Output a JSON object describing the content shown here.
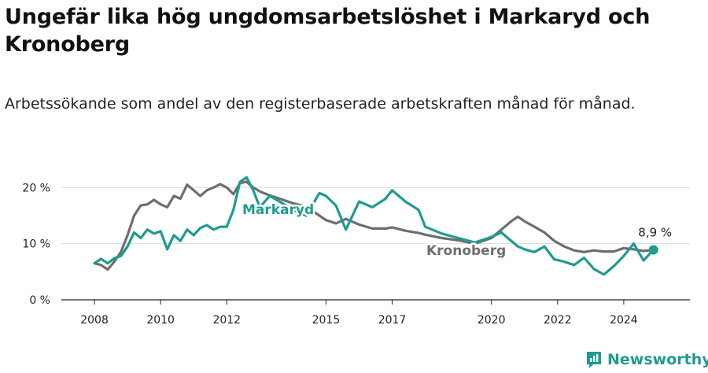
{
  "title": "Ungefär lika hög ungdomsarbetslöshet i Markaryd och Kronoberg",
  "subtitle": "Arbetssökande som andel av den registerbaserade arbetskraften månad för månad.",
  "brand": "Newsworthy",
  "colors": {
    "markaryd": "#1f9b8f",
    "kronoberg": "#6e6e6e",
    "grid": "#d9d9d9",
    "axis": "#222222",
    "brand": "#1f9b8f"
  },
  "chart_data": {
    "type": "line",
    "title": "Ungefär lika hög ungdomsarbetslöshet i Markaryd och Kronoberg",
    "xlabel": "",
    "ylabel": "",
    "x_range": [
      2007.0,
      2026.0
    ],
    "ylim": [
      0,
      22
    ],
    "y_ticks": [
      0,
      10,
      20
    ],
    "y_tick_labels": [
      "0 %",
      "10 %",
      "20 %"
    ],
    "x_ticks": [
      2008,
      2010,
      2012,
      2015,
      2017,
      2020,
      2022,
      2024
    ],
    "x_tick_labels": [
      "2008",
      "2010",
      "2012",
      "2015",
      "2017",
      "2020",
      "2022",
      "2024"
    ],
    "grid": true,
    "end_label": "8,9 %",
    "series": [
      {
        "name": "Kronoberg",
        "label": "Kronoberg",
        "x": [
          2008.0,
          2008.2,
          2008.4,
          2008.6,
          2008.8,
          2009.0,
          2009.2,
          2009.4,
          2009.6,
          2009.8,
          2010.0,
          2010.2,
          2010.4,
          2010.6,
          2010.8,
          2011.0,
          2011.2,
          2011.4,
          2011.6,
          2011.8,
          2012.0,
          2012.2,
          2012.4,
          2012.6,
          2012.8,
          2013.0,
          2013.3,
          2013.6,
          2014.0,
          2014.4,
          2014.8,
          2015.0,
          2015.3,
          2015.6,
          2016.0,
          2016.4,
          2016.8,
          2017.0,
          2017.4,
          2017.8,
          2018.0,
          2018.5,
          2019.0,
          2019.5,
          2020.0,
          2020.3,
          2020.6,
          2020.8,
          2021.0,
          2021.3,
          2021.6,
          2021.9,
          2022.2,
          2022.5,
          2022.8,
          2023.1,
          2023.4,
          2023.7,
          2024.0,
          2024.3,
          2024.6,
          2024.9
        ],
        "y": [
          6.5,
          6.2,
          5.4,
          6.8,
          8.5,
          11.5,
          15.0,
          16.8,
          17.0,
          17.8,
          17.0,
          16.5,
          18.5,
          18.0,
          20.5,
          19.5,
          18.5,
          19.5,
          20.0,
          20.6,
          20.0,
          18.8,
          20.8,
          21.0,
          20.0,
          19.3,
          18.6,
          18.0,
          17.2,
          16.6,
          15.0,
          14.2,
          13.6,
          14.4,
          13.4,
          12.7,
          12.7,
          12.9,
          12.3,
          11.9,
          11.6,
          11.0,
          10.6,
          10.0,
          11.0,
          12.5,
          14.0,
          14.8,
          14.0,
          13.0,
          12.0,
          10.5,
          9.5,
          8.8,
          8.5,
          8.8,
          8.6,
          8.6,
          9.2,
          9.0,
          8.7,
          8.9
        ]
      },
      {
        "name": "Markaryd",
        "label": "Markaryd",
        "x": [
          2008.0,
          2008.2,
          2008.4,
          2008.6,
          2008.8,
          2009.0,
          2009.2,
          2009.4,
          2009.6,
          2009.8,
          2010.0,
          2010.2,
          2010.4,
          2010.6,
          2010.8,
          2011.0,
          2011.2,
          2011.4,
          2011.6,
          2011.8,
          2012.0,
          2012.2,
          2012.4,
          2012.6,
          2012.8,
          2013.0,
          2013.3,
          2013.6,
          2014.0,
          2014.4,
          2014.8,
          2015.0,
          2015.3,
          2015.6,
          2016.0,
          2016.4,
          2016.8,
          2017.0,
          2017.4,
          2017.8,
          2018.0,
          2018.5,
          2019.0,
          2019.5,
          2020.0,
          2020.3,
          2020.6,
          2020.8,
          2021.0,
          2021.3,
          2021.6,
          2021.9,
          2022.2,
          2022.5,
          2022.8,
          2023.1,
          2023.4,
          2023.7,
          2024.0,
          2024.3,
          2024.6,
          2024.9
        ],
        "y": [
          6.5,
          7.3,
          6.5,
          7.4,
          7.8,
          9.5,
          12.0,
          11.0,
          12.5,
          11.8,
          12.2,
          9.0,
          11.5,
          10.5,
          12.5,
          11.5,
          12.8,
          13.3,
          12.5,
          13.0,
          13.0,
          16.0,
          21.0,
          21.8,
          19.5,
          16.5,
          18.5,
          17.5,
          16.0,
          15.0,
          19.0,
          18.5,
          16.8,
          12.5,
          17.5,
          16.5,
          18.0,
          19.5,
          17.5,
          16.0,
          13.0,
          11.8,
          11.0,
          10.2,
          11.2,
          12.0,
          10.5,
          9.5,
          9.0,
          8.5,
          9.5,
          7.2,
          6.8,
          6.2,
          7.5,
          5.5,
          4.5,
          6.0,
          7.8,
          10.0,
          7.0,
          8.9
        ]
      }
    ]
  }
}
